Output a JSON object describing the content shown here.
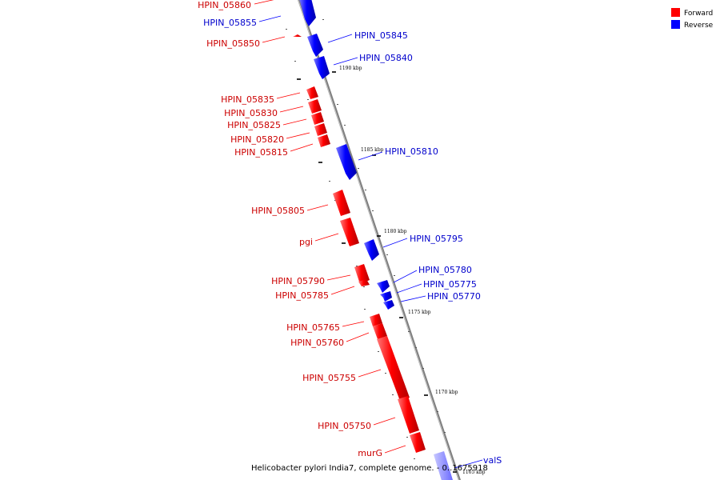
{
  "legend": {
    "forward_label": "Forward",
    "reverse_label": "Reverse",
    "forward_color": "#ff0000",
    "reverse_color": "#0000ff"
  },
  "caption": "Helicobacter pylori India7, complete genome. - 0..1675918",
  "ticks": [
    "1190 kbp",
    "1185 kbp",
    "1180 kbp",
    "1175 kbp",
    "1170 kbp",
    "1165 kbp"
  ],
  "genes_forward": [
    "HPIN_05860",
    "HPIN_05850",
    "HPIN_05835",
    "HPIN_05830",
    "HPIN_05825",
    "HPIN_05820",
    "HPIN_05815",
    "HPIN_05805",
    "pgi",
    "HPIN_05790",
    "HPIN_05785",
    "HPIN_05765",
    "HPIN_05760",
    "HPIN_05755",
    "HPIN_05750",
    "murG"
  ],
  "genes_reverse": [
    "HPIN_05855",
    "HPIN_05845",
    "HPIN_05840",
    "HPIN_05810",
    "HPIN_05795",
    "HPIN_05780",
    "HPIN_05775",
    "HPIN_05770",
    "valS"
  ]
}
